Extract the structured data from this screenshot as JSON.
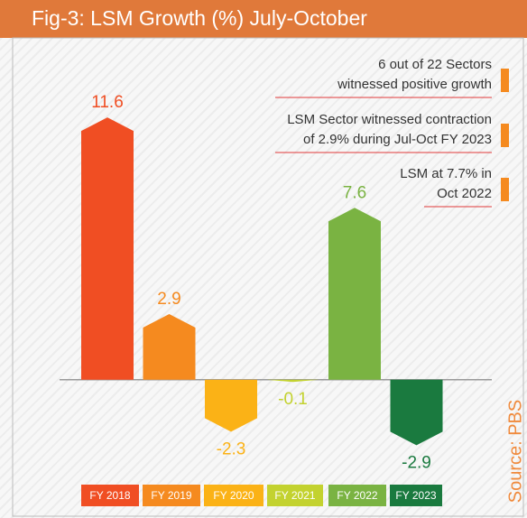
{
  "chart_data": {
    "type": "bar",
    "title": "Fig-3: LSM Growth (%) July-October",
    "categories": [
      "FY 2018",
      "FY 2019",
      "FY 2020",
      "FY 2021",
      "FY 2022",
      "FY 2023"
    ],
    "values": [
      11.6,
      2.9,
      -2.3,
      -0.1,
      7.6,
      -2.9
    ],
    "colors": [
      "#f04e23",
      "#f58a1f",
      "#fbb216",
      "#c3d22f",
      "#7ab342",
      "#1a7a3f"
    ],
    "ylim": [
      -5,
      13
    ],
    "annotations": [
      [
        "6 out of 22 Sectors",
        "witnessed positive growth"
      ],
      [
        "LSM Sector witnessed contraction",
        "of 2.9% during Jul-Oct FY 2023"
      ],
      [
        "LSM at 7.7% in",
        "Oct 2022"
      ]
    ],
    "source": "Source: PBS"
  }
}
